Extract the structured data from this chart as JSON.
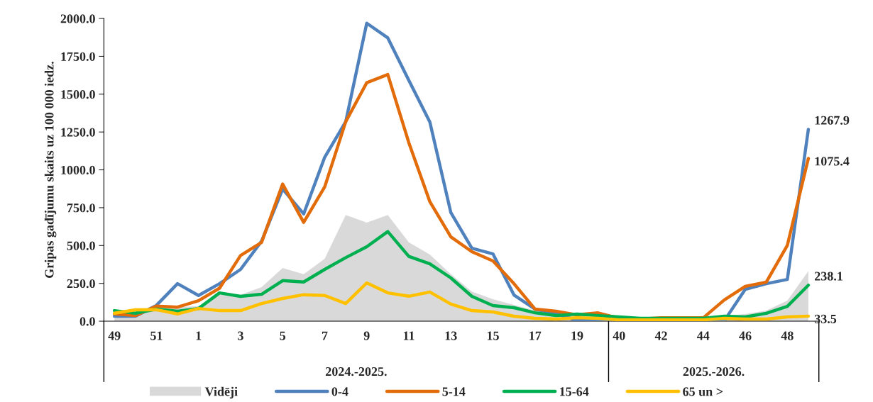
{
  "chart_data": {
    "type": "line",
    "ylabel": "Gripas gadījumu skaits uz 100 000 iedz.",
    "categories": [
      "49",
      null,
      "51",
      null,
      "1",
      null,
      "3",
      null,
      "5",
      null,
      "7",
      null,
      "9",
      null,
      "11",
      null,
      "13",
      null,
      "15",
      null,
      "17",
      null,
      "19",
      null,
      "40",
      null,
      "42",
      null,
      "44",
      null,
      "46",
      null,
      "48",
      null
    ],
    "series": [
      {
        "name": "Vidēji",
        "type": "area",
        "color": "#d9d9d9",
        "values": [
          20,
          43,
          70,
          93,
          100,
          175,
          175,
          225,
          351,
          311,
          412,
          702,
          651,
          702,
          521,
          440,
          310,
          196,
          145,
          108,
          70,
          40,
          35,
          30,
          15,
          12,
          12,
          12,
          15,
          35,
          47,
          70,
          136,
          330
        ]
      },
      {
        "name": "0-4",
        "color": "#4f81bd",
        "values": [
          33,
          33,
          105,
          248,
          170,
          248,
          342,
          529,
          873,
          709,
          1083,
          1318,
          1969,
          1872,
          1592,
          1316,
          717,
          482,
          445,
          173,
          80,
          50,
          5,
          3,
          5,
          3,
          3,
          3,
          3,
          3,
          211,
          248,
          276,
          1267.9
        ],
        "value_labels": [
          null,
          null,
          null,
          null,
          null,
          null,
          null,
          null,
          null,
          null,
          null,
          null,
          null,
          null,
          null,
          null,
          null,
          null,
          null,
          null,
          null,
          null,
          null,
          null,
          null,
          null,
          null,
          null,
          null,
          null,
          null,
          null,
          null,
          "1267.9"
        ]
      },
      {
        "name": "5-14",
        "color": "#e36c0a",
        "values": [
          48,
          37,
          100,
          93,
          135,
          218,
          434,
          521,
          906,
          653,
          887,
          1318,
          1576,
          1630,
          1180,
          790,
          557,
          459,
          398,
          248,
          80,
          66,
          42,
          55,
          19,
          14,
          22,
          22,
          22,
          140,
          230,
          258,
          501,
          1075.4
        ],
        "value_labels": [
          null,
          null,
          null,
          null,
          null,
          null,
          null,
          null,
          null,
          null,
          null,
          null,
          null,
          null,
          null,
          null,
          null,
          null,
          null,
          null,
          null,
          null,
          null,
          null,
          null,
          null,
          null,
          null,
          null,
          null,
          null,
          null,
          null,
          "1075.4"
        ]
      },
      {
        "name": "15-64",
        "color": "#00b050",
        "values": [
          70,
          53,
          80,
          66,
          84,
          187,
          164,
          178,
          268,
          259,
          342,
          420,
          492,
          592,
          428,
          379,
          286,
          164,
          103,
          89,
          56,
          37,
          47,
          37,
          28,
          19,
          19,
          19,
          19,
          33,
          28,
          52,
          98,
          238.1
        ],
        "value_labels": [
          null,
          null,
          null,
          null,
          null,
          null,
          null,
          null,
          null,
          null,
          null,
          null,
          null,
          null,
          null,
          null,
          null,
          null,
          null,
          null,
          null,
          null,
          null,
          null,
          null,
          null,
          null,
          null,
          null,
          null,
          null,
          null,
          null,
          "238.1"
        ]
      },
      {
        "name": "65 un >",
        "color": "#ffc000",
        "values": [
          53,
          75,
          76,
          48,
          84,
          70,
          70,
          117,
          150,
          175,
          170,
          117,
          253,
          187,
          165,
          193,
          113,
          70,
          61,
          33,
          19,
          14,
          23,
          19,
          9,
          9,
          9,
          9,
          9,
          19,
          14,
          14,
          28,
          33.5
        ],
        "value_labels": [
          null,
          null,
          null,
          null,
          null,
          null,
          null,
          null,
          null,
          null,
          null,
          null,
          null,
          null,
          null,
          null,
          null,
          null,
          null,
          null,
          null,
          null,
          null,
          null,
          null,
          null,
          null,
          null,
          null,
          null,
          null,
          null,
          null,
          "33.5"
        ]
      }
    ],
    "ylim": [
      0,
      2000
    ],
    "yticks": [
      {
        "value": 0,
        "label": "0.0"
      },
      {
        "value": 250,
        "label": "250.0"
      },
      {
        "value": 500,
        "label": "500.0"
      },
      {
        "value": 750,
        "label": "750.0"
      },
      {
        "value": 1000,
        "label": "1000.0"
      },
      {
        "value": 1250,
        "label": "1250.0"
      },
      {
        "value": 1500,
        "label": "1500.0"
      },
      {
        "value": 1750,
        "label": "1750.0"
      },
      {
        "value": 2000,
        "label": "2000.0"
      }
    ],
    "annotations": [
      "2024.-2025.",
      "2025.-2026."
    ],
    "grid": false,
    "legend": "bottom",
    "marker": "none",
    "line_style": "solid"
  }
}
